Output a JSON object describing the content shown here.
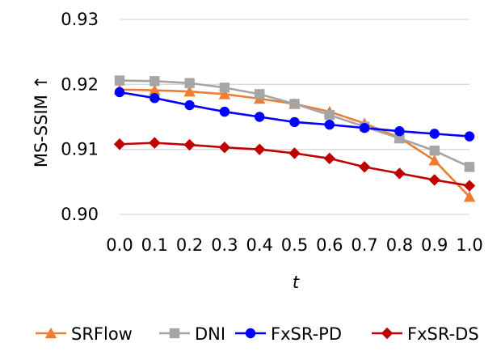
{
  "chart_data": {
    "type": "line",
    "title": "",
    "xlabel": "t",
    "ylabel": "MS-SSIM ↑",
    "x": [
      0.0,
      0.1,
      0.2,
      0.3,
      0.4,
      0.5,
      0.6,
      0.7,
      0.8,
      0.9,
      1.0
    ],
    "x_tick_labels": [
      "0.0",
      "0.1",
      "0.2",
      "0.3",
      "0.4",
      "0.5",
      "0.6",
      "0.7",
      "0.8",
      "0.9",
      "1.0"
    ],
    "ylim": [
      0.9,
      0.93
    ],
    "y_ticks": [
      0.9,
      0.91,
      0.92,
      0.93
    ],
    "y_tick_labels": [
      "0.90",
      "0.91",
      "0.92",
      "0.93"
    ],
    "grid": true,
    "legend_position": "bottom",
    "series": [
      {
        "name": "SRFlow",
        "color": "#ED7D31",
        "marker": "triangle",
        "values": [
          0.9192,
          0.9191,
          0.9189,
          0.9185,
          0.9178,
          0.917,
          0.9158,
          0.914,
          0.9118,
          0.9083,
          0.9027
        ]
      },
      {
        "name": "DNI",
        "color": "#A5A5A5",
        "marker": "square",
        "values": [
          0.9206,
          0.9205,
          0.9202,
          0.9195,
          0.9185,
          0.917,
          0.9153,
          0.9135,
          0.9117,
          0.9098,
          0.9073
        ]
      },
      {
        "name": "FxSR-PD",
        "color": "#0000FF",
        "marker": "circle",
        "values": [
          0.9188,
          0.9179,
          0.9168,
          0.9158,
          0.915,
          0.9142,
          0.9138,
          0.9133,
          0.9128,
          0.9124,
          0.912
        ]
      },
      {
        "name": "FxSR-DS",
        "color": "#C00000",
        "marker": "diamond",
        "values": [
          0.9108,
          0.911,
          0.9107,
          0.9103,
          0.91,
          0.9094,
          0.9086,
          0.9073,
          0.9063,
          0.9053,
          0.9044
        ]
      }
    ]
  }
}
